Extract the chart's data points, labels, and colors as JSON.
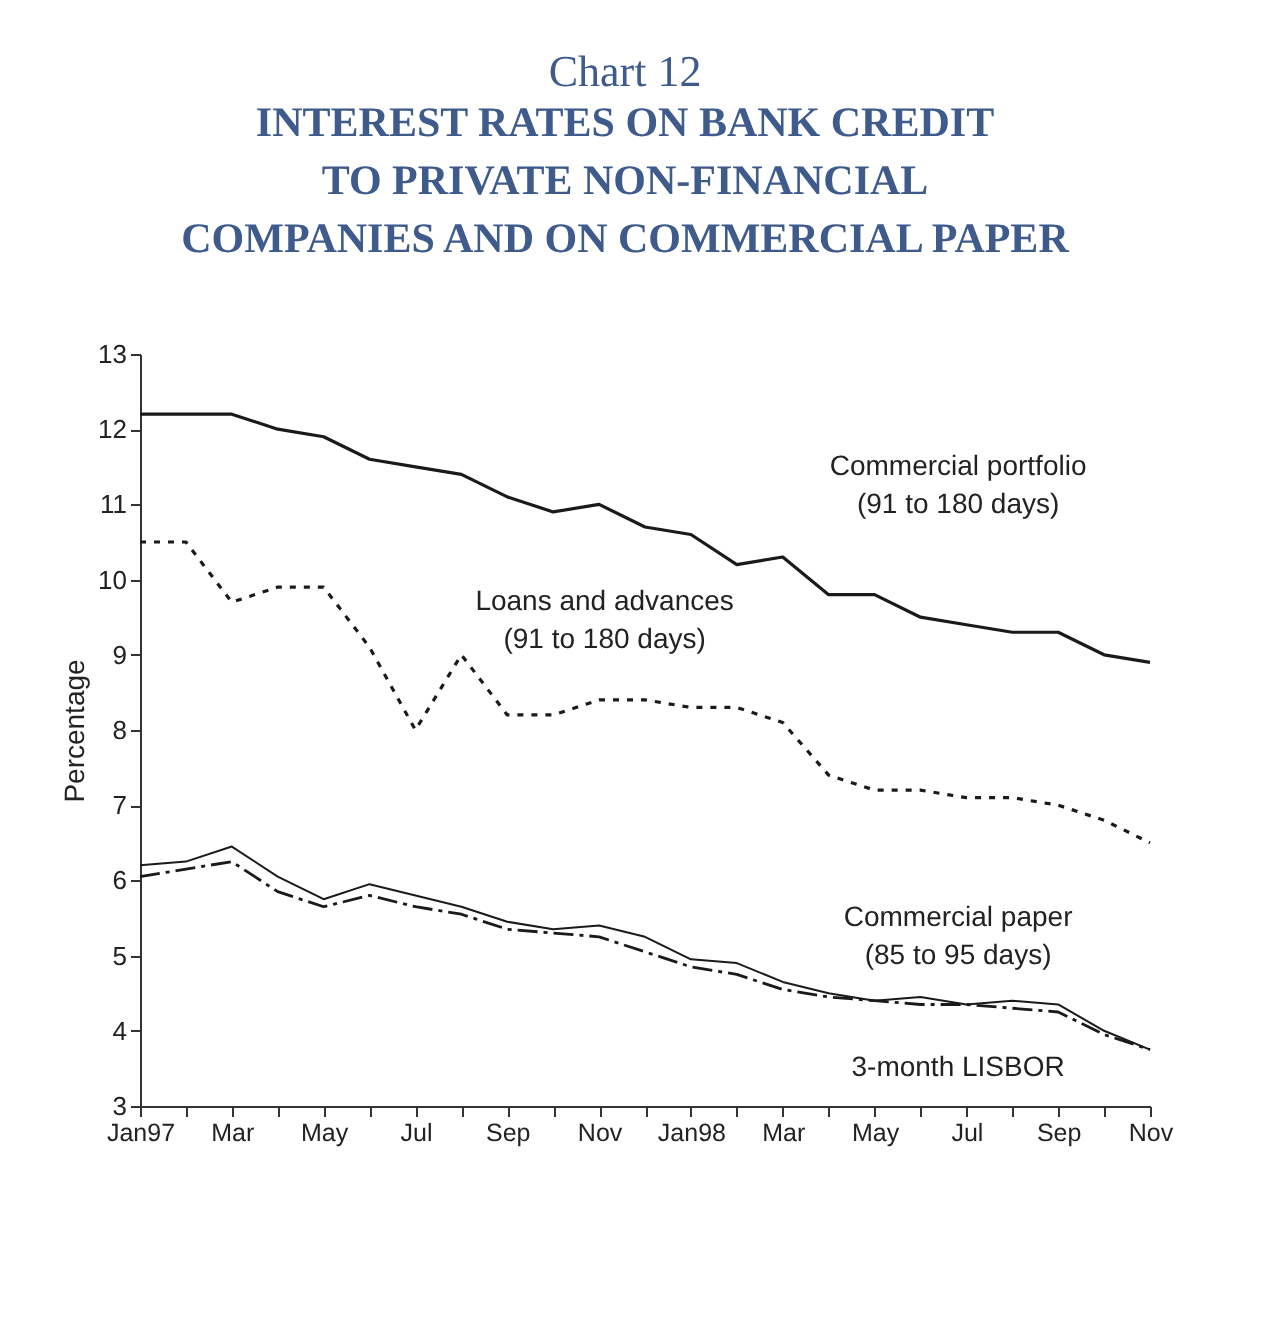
{
  "chart_data": {
    "type": "line",
    "title": "Chart 12",
    "subtitle": "INTEREST RATES ON BANK CREDIT\nTO PRIVATE NON-FINANCIAL\nCOMPANIES AND ON COMMERCIAL PAPER",
    "ylabel": "Percentage",
    "categories": [
      "Jan97",
      null,
      "Mar",
      null,
      "May",
      null,
      "Jul",
      null,
      "Sep",
      null,
      "Nov",
      null,
      "Jan98",
      null,
      "Mar",
      null,
      "May",
      null,
      "Jul",
      null,
      "Sep",
      null,
      "Nov"
    ],
    "series": [
      {
        "name": "Commercial portfolio\n(91 to 180 days)",
        "color": "#1a1a1a",
        "line_style": "solid",
        "values": [
          12.2,
          12.2,
          12.2,
          12.0,
          11.9,
          11.6,
          11.5,
          11.4,
          11.1,
          10.9,
          11.0,
          10.7,
          10.6,
          10.2,
          10.3,
          9.8,
          9.8,
          9.5,
          9.4,
          9.3,
          9.3,
          9.0,
          8.9
        ]
      },
      {
        "name": "Loans and advances\n(91 to 180 days)",
        "color": "#1a1a1a",
        "line_style": "dotted",
        "values": [
          10.5,
          10.5,
          9.7,
          9.9,
          9.9,
          9.1,
          8.0,
          9.0,
          8.2,
          8.2,
          8.4,
          8.4,
          8.3,
          8.3,
          8.1,
          7.4,
          7.2,
          7.2,
          7.1,
          7.1,
          7.0,
          6.8,
          6.5
        ]
      },
      {
        "name": "Commercial paper\n(85 to 95 days)",
        "color": "#1a1a1a",
        "line_style": "solid",
        "values": [
          6.2,
          6.25,
          6.45,
          6.05,
          5.75,
          5.95,
          5.8,
          5.65,
          5.45,
          5.35,
          5.4,
          5.25,
          4.95,
          4.9,
          4.65,
          4.5,
          4.4,
          4.45,
          4.35,
          4.4,
          4.35,
          4.0,
          3.75
        ]
      },
      {
        "name": "3-month LISBOR",
        "color": "#1a1a1a",
        "line_style": "dashed",
        "values": [
          6.05,
          6.15,
          6.25,
          5.85,
          5.65,
          5.8,
          5.65,
          5.55,
          5.35,
          5.3,
          5.25,
          5.05,
          4.85,
          4.75,
          4.55,
          4.45,
          4.4,
          4.35,
          4.35,
          4.3,
          4.25,
          3.95,
          3.75
        ]
      }
    ],
    "ylim": [
      3,
      13
    ],
    "yticks": [
      3,
      4,
      5,
      6,
      7,
      8,
      9,
      10,
      11,
      12,
      13
    ],
    "grid": false,
    "marker": "none"
  }
}
